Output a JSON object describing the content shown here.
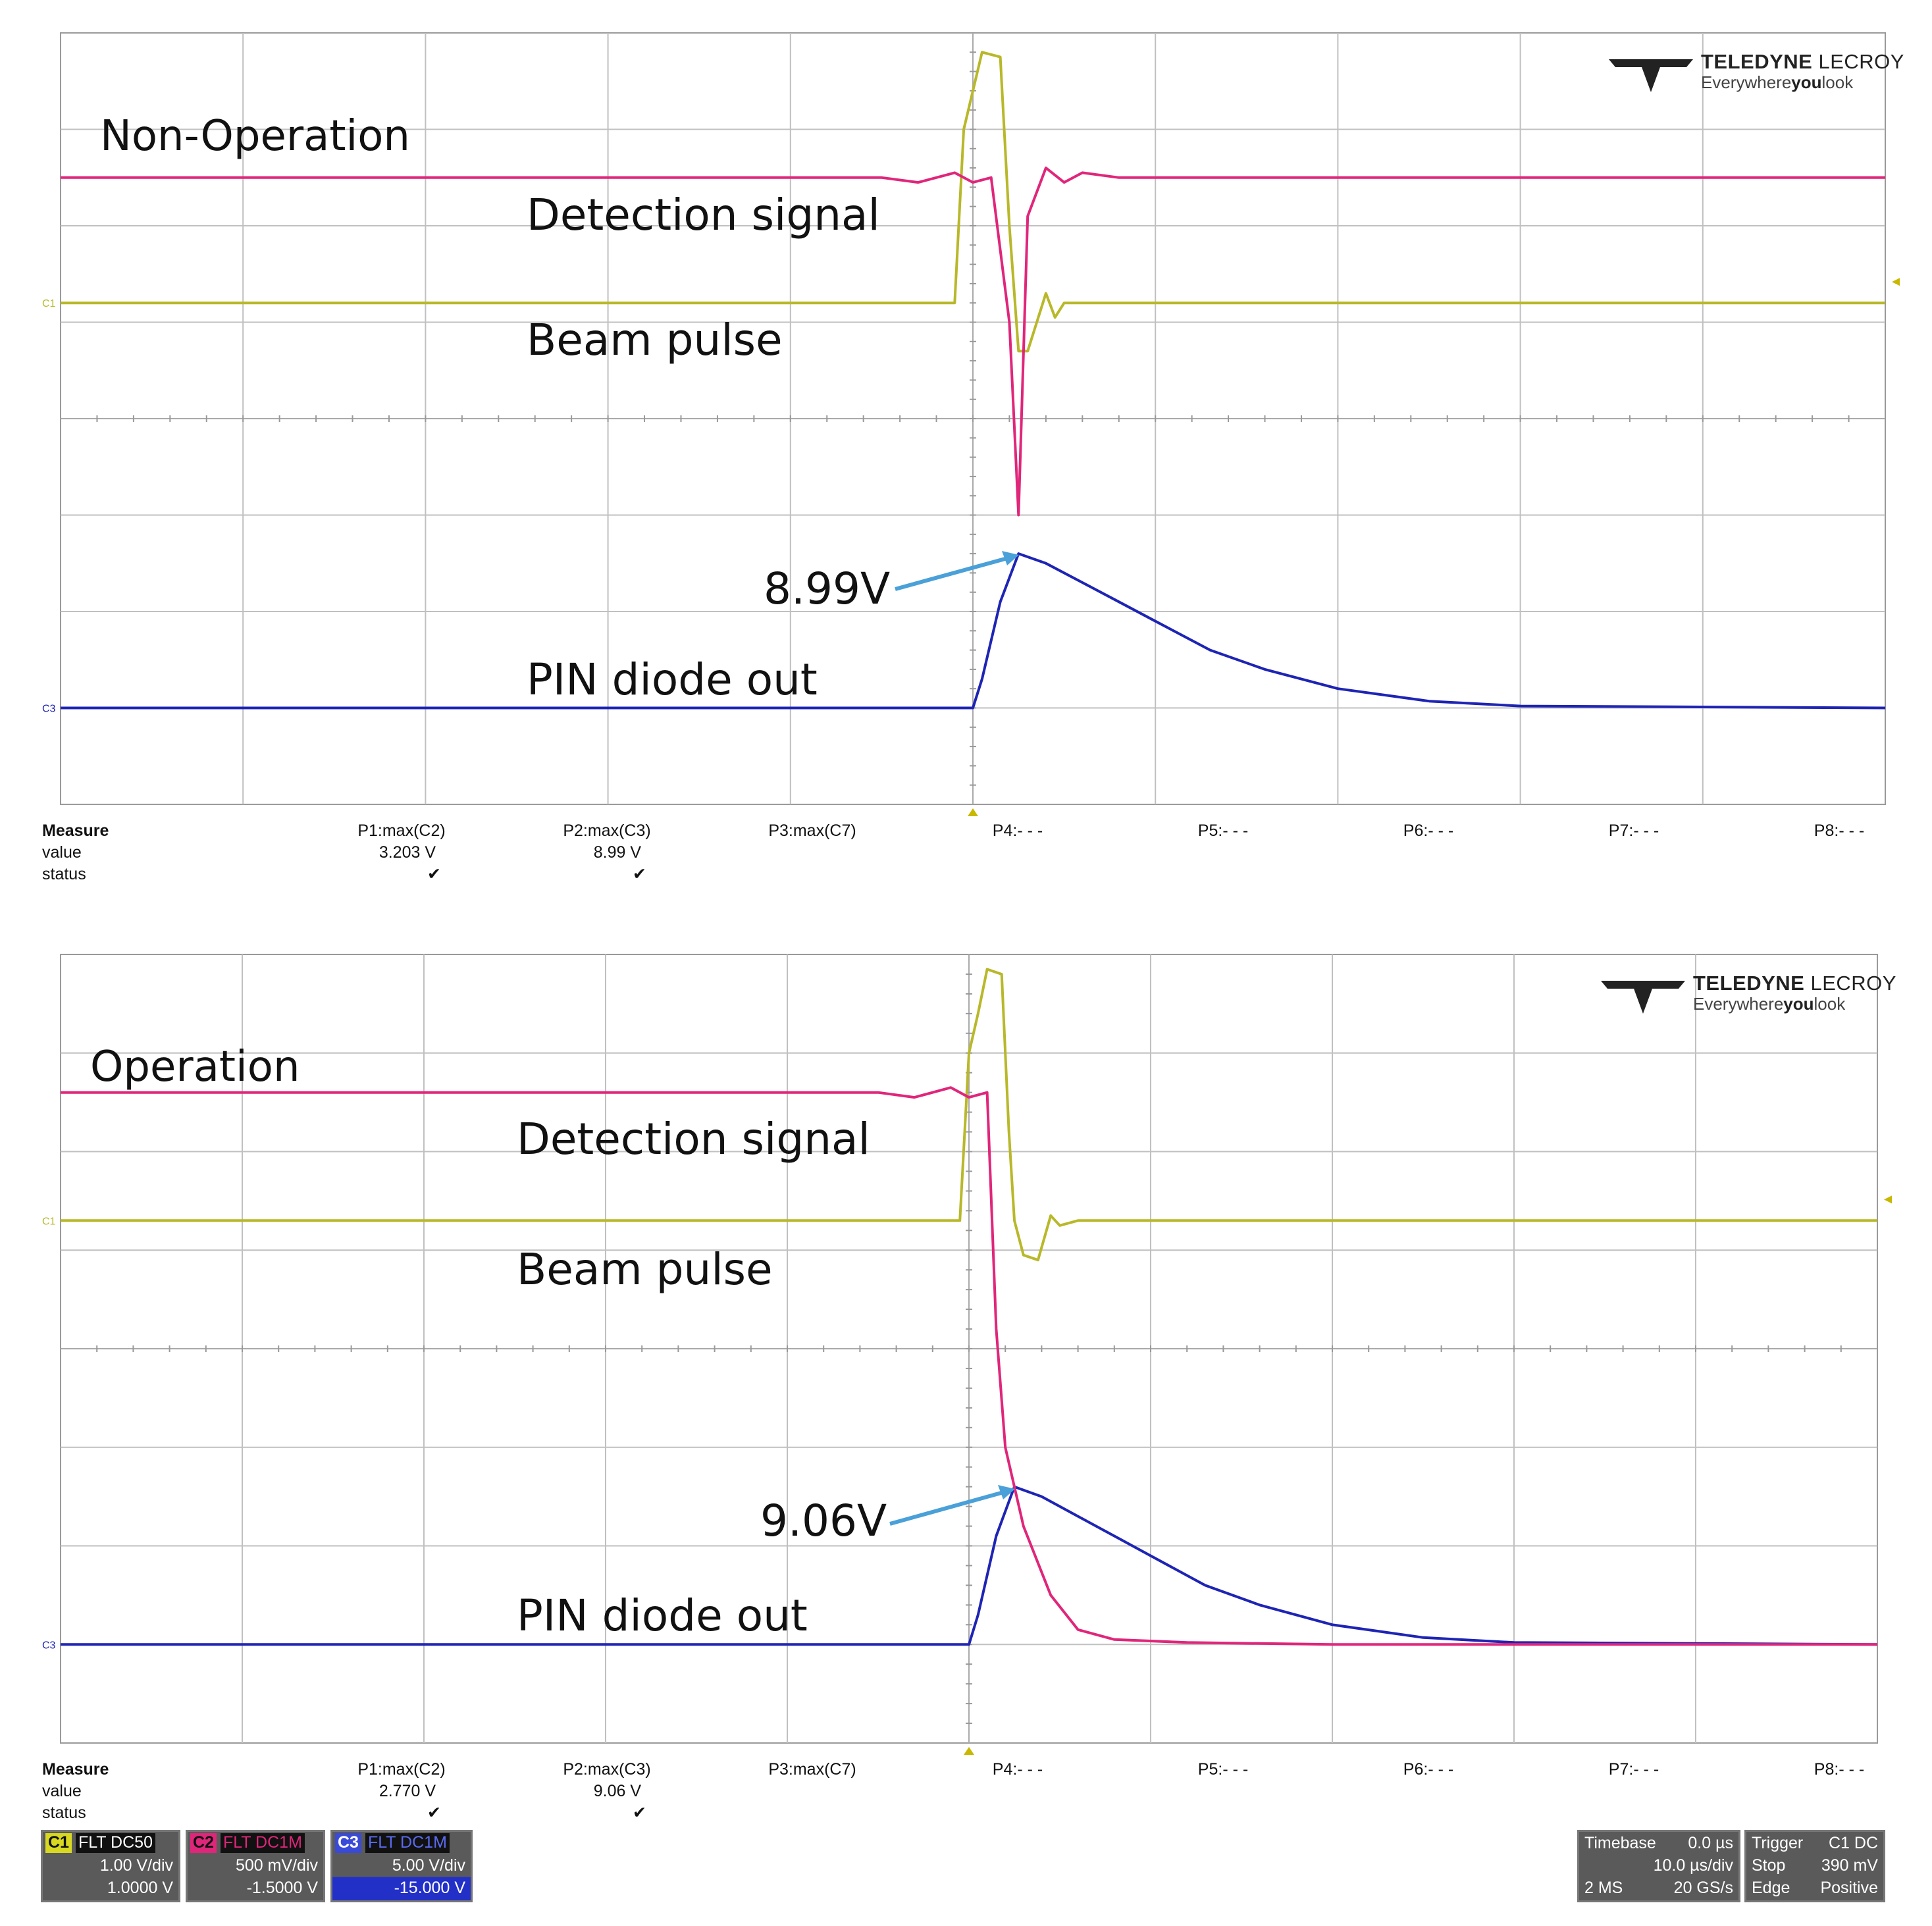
{
  "brand": {
    "name": "TELEDYNE LECROY",
    "name_main": "TELEDYNE",
    "name_sub": "LECROY",
    "tagline_a": "Everywhere",
    "tagline_b": "you",
    "tagline_c": "look"
  },
  "colors": {
    "detection": "#e0267a",
    "beam": "#b8b82a",
    "pin": "#1e24b4",
    "arrow": "#4aa0d8",
    "grid": "#c0c0c0"
  },
  "labels": {
    "detection": "Detection  signal",
    "beam": "Beam  pulse",
    "pin": "PIN  diode  out"
  },
  "chart_data": [
    {
      "type": "line",
      "title": "Non-Operation",
      "x_divisions": 10,
      "y_divisions": 8,
      "annotation": "8.99V",
      "series": [
        {
          "name": "Detection signal",
          "x": [
            0,
            4.5,
            4.7,
            4.9,
            5.0,
            5.1,
            5.2,
            5.25,
            5.3,
            5.4,
            5.5,
            5.6,
            5.8,
            6.2,
            10
          ],
          "y": [
            6.5,
            6.5,
            6.45,
            6.55,
            6.45,
            6.5,
            5.0,
            3.0,
            6.1,
            6.6,
            6.45,
            6.55,
            6.5,
            6.5,
            6.5
          ]
        },
        {
          "name": "Beam pulse",
          "x": [
            0,
            4.9,
            4.95,
            5.0,
            5.05,
            5.15,
            5.2,
            5.25,
            5.3,
            5.4,
            5.45,
            5.5,
            5.6,
            10
          ],
          "y": [
            5.2,
            5.2,
            7.0,
            7.4,
            7.8,
            7.75,
            6.0,
            4.7,
            4.7,
            5.3,
            5.05,
            5.2,
            5.2,
            5.2
          ]
        },
        {
          "name": "PIN diode out",
          "x": [
            0,
            5.0,
            5.05,
            5.15,
            5.25,
            5.4,
            5.6,
            5.8,
            6.0,
            6.3,
            6.6,
            7.0,
            7.5,
            8.0,
            10
          ],
          "y": [
            1.0,
            1.0,
            1.3,
            2.1,
            2.6,
            2.5,
            2.3,
            2.1,
            1.9,
            1.6,
            1.4,
            1.2,
            1.07,
            1.02,
            1.0
          ]
        }
      ],
      "measure": {
        "header": "Measure",
        "row_value": "value",
        "row_status": "status",
        "cols": [
          {
            "label": "P1:max(C2)",
            "value": "3.203 V",
            "status": "✔"
          },
          {
            "label": "P2:max(C3)",
            "value": "8.99 V",
            "status": "✔"
          },
          {
            "label": "P3:max(C7)",
            "value": "",
            "status": ""
          },
          {
            "label": "P4:- - -",
            "value": "",
            "status": ""
          },
          {
            "label": "P5:- - -",
            "value": "",
            "status": ""
          },
          {
            "label": "P6:- - -",
            "value": "",
            "status": ""
          },
          {
            "label": "P7:- - -",
            "value": "",
            "status": ""
          },
          {
            "label": "P8:- - -",
            "value": "",
            "status": ""
          }
        ]
      }
    },
    {
      "type": "line",
      "title": "Operation",
      "x_divisions": 10,
      "y_divisions": 8,
      "annotation": "9.06V",
      "series": [
        {
          "name": "Detection signal",
          "x": [
            0,
            4.5,
            4.7,
            4.9,
            5.0,
            5.1,
            5.15,
            5.2,
            5.3,
            5.45,
            5.6,
            5.8,
            6.2,
            7.0,
            10
          ],
          "y": [
            6.6,
            6.6,
            6.55,
            6.65,
            6.55,
            6.6,
            4.2,
            3.0,
            2.2,
            1.5,
            1.15,
            1.05,
            1.02,
            1.0,
            1.0
          ]
        },
        {
          "name": "Beam pulse",
          "x": [
            0,
            4.95,
            5.0,
            5.05,
            5.1,
            5.18,
            5.22,
            5.25,
            5.3,
            5.38,
            5.45,
            5.5,
            5.6,
            10
          ],
          "y": [
            5.3,
            5.3,
            7.0,
            7.4,
            7.85,
            7.8,
            6.2,
            5.3,
            4.95,
            4.9,
            5.35,
            5.25,
            5.3,
            5.3
          ]
        },
        {
          "name": "PIN diode out",
          "x": [
            0,
            5.0,
            5.05,
            5.15,
            5.25,
            5.4,
            5.6,
            5.8,
            6.0,
            6.3,
            6.6,
            7.0,
            7.5,
            8.0,
            10
          ],
          "y": [
            1.0,
            1.0,
            1.3,
            2.1,
            2.6,
            2.5,
            2.3,
            2.1,
            1.9,
            1.6,
            1.4,
            1.2,
            1.07,
            1.02,
            1.0
          ]
        }
      ],
      "measure": {
        "header": "Measure",
        "row_value": "value",
        "row_status": "status",
        "cols": [
          {
            "label": "P1:max(C2)",
            "value": "2.770 V",
            "status": "✔"
          },
          {
            "label": "P2:max(C3)",
            "value": "9.06 V",
            "status": "✔"
          },
          {
            "label": "P3:max(C7)",
            "value": "",
            "status": ""
          },
          {
            "label": "P4:- - -",
            "value": "",
            "status": ""
          },
          {
            "label": "P5:- - -",
            "value": "",
            "status": ""
          },
          {
            "label": "P6:- - -",
            "value": "",
            "status": ""
          },
          {
            "label": "P7:- - -",
            "value": "",
            "status": ""
          },
          {
            "label": "P8:- - -",
            "value": "",
            "status": ""
          }
        ]
      }
    }
  ],
  "channels": [
    {
      "tag": "C1",
      "flags": "FLT DC50",
      "scale": "1.00 V/div",
      "offset": "1.0000 V",
      "color": "#d8d820"
    },
    {
      "tag": "C2",
      "flags": "FLT DC1M",
      "scale": "500 mV/div",
      "offset": "-1.5000 V",
      "color": "#e0267a"
    },
    {
      "tag": "C3",
      "flags": "FLT DC1M",
      "scale": "5.00 V/div",
      "offset": "-15.000 V",
      "color": "#3a4ad8"
    }
  ],
  "timebase": {
    "label": "Timebase",
    "delay": "0.0 µs",
    "scale": "10.0 µs/div",
    "mem": "2 MS",
    "rate": "20 GS/s"
  },
  "trigger": {
    "label": "Trigger",
    "src": "C1 DC",
    "mode": "Stop",
    "level": "390 mV",
    "type": "Edge",
    "slope": "Positive"
  },
  "markers": {
    "c1": "C1",
    "c3": "C3"
  }
}
